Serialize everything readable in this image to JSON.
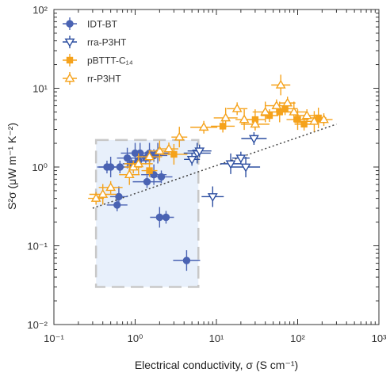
{
  "chart_data": {
    "type": "scatter",
    "title": "",
    "xlabel": "Electrical conductivity, σ (S cm⁻¹)",
    "ylabel": "S²σ (μW m⁻¹ K⁻²)",
    "xscale": "log",
    "yscale": "log",
    "xlim": [
      0.1,
      1000
    ],
    "ylim": [
      0.01,
      100
    ],
    "x_tick_labels": [
      "10⁻¹",
      "10⁰",
      "10¹",
      "10²",
      "10³"
    ],
    "x_tick_values": [
      0.1,
      1,
      10,
      100,
      1000
    ],
    "y_tick_labels": [
      "10⁻²",
      "10⁻¹",
      "10⁰",
      "10¹",
      "10²"
    ],
    "y_tick_values": [
      0.01,
      0.1,
      1,
      10,
      100
    ],
    "grid": false,
    "legend_position": "top-left",
    "highlight_box": {
      "x": [
        0.33,
        6.0
      ],
      "y": [
        0.03,
        2.2
      ],
      "fill": "#e8f0fb",
      "stroke": "#c8c8c8"
    },
    "trend_line": {
      "x": [
        0.3,
        300
      ],
      "y": [
        0.3,
        3.5
      ],
      "style": "dotted",
      "color": "#444444"
    },
    "series": [
      {
        "name": "IDT-BT",
        "marker": "filled-circle",
        "color": "#4a63b3",
        "points": [
          {
            "x": 0.45,
            "y": 1.0
          },
          {
            "x": 0.5,
            "y": 1.0
          },
          {
            "x": 0.65,
            "y": 1.0
          },
          {
            "x": 0.8,
            "y": 1.3
          },
          {
            "x": 0.9,
            "y": 1.1
          },
          {
            "x": 1.0,
            "y": 1.5
          },
          {
            "x": 1.1,
            "y": 1.2
          },
          {
            "x": 1.15,
            "y": 1.5
          },
          {
            "x": 1.35,
            "y": 1.3
          },
          {
            "x": 1.5,
            "y": 1.5
          },
          {
            "x": 1.7,
            "y": 1.4
          },
          {
            "x": 1.9,
            "y": 1.5
          },
          {
            "x": 0.6,
            "y": 0.33
          },
          {
            "x": 0.63,
            "y": 0.42
          },
          {
            "x": 1.4,
            "y": 0.65
          },
          {
            "x": 1.7,
            "y": 0.8
          },
          {
            "x": 2.1,
            "y": 0.75
          },
          {
            "x": 2.0,
            "y": 0.23
          },
          {
            "x": 2.4,
            "y": 0.23
          },
          {
            "x": 4.3,
            "y": 0.065
          }
        ]
      },
      {
        "name": "rra-P3HT",
        "marker": "open-triangle-down",
        "color": "#2c4ea0",
        "points": [
          {
            "x": 5.0,
            "y": 1.25
          },
          {
            "x": 5.8,
            "y": 1.5
          },
          {
            "x": 6.2,
            "y": 1.6
          },
          {
            "x": 15.0,
            "y": 1.1
          },
          {
            "x": 20.0,
            "y": 1.3
          },
          {
            "x": 23.0,
            "y": 1.0
          },
          {
            "x": 29.0,
            "y": 2.3
          },
          {
            "x": 9.0,
            "y": 0.42
          }
        ]
      },
      {
        "name": "pBTTT-C₁₄",
        "marker": "filled-square",
        "color": "#f5a21b",
        "points": [
          {
            "x": 1.5,
            "y": 0.9
          },
          {
            "x": 3.0,
            "y": 1.45
          },
          {
            "x": 12.0,
            "y": 3.3
          },
          {
            "x": 30.0,
            "y": 4.0
          },
          {
            "x": 45.0,
            "y": 4.5
          },
          {
            "x": 60.0,
            "y": 5.0
          },
          {
            "x": 70.0,
            "y": 5.5
          },
          {
            "x": 100.0,
            "y": 4.0
          },
          {
            "x": 120.0,
            "y": 3.5
          },
          {
            "x": 180.0,
            "y": 4.2
          }
        ]
      },
      {
        "name": "rr-P3HT",
        "marker": "open-triangle-up",
        "color": "#f5a21b",
        "points": [
          {
            "x": 0.33,
            "y": 0.4
          },
          {
            "x": 0.4,
            "y": 0.45
          },
          {
            "x": 0.5,
            "y": 0.55
          },
          {
            "x": 0.85,
            "y": 0.8
          },
          {
            "x": 0.95,
            "y": 1.0
          },
          {
            "x": 1.1,
            "y": 1.1
          },
          {
            "x": 1.5,
            "y": 1.35
          },
          {
            "x": 2.0,
            "y": 1.6
          },
          {
            "x": 2.6,
            "y": 1.7
          },
          {
            "x": 3.5,
            "y": 2.4
          },
          {
            "x": 7.0,
            "y": 3.2
          },
          {
            "x": 13.0,
            "y": 4.2
          },
          {
            "x": 18.0,
            "y": 5.5
          },
          {
            "x": 22.0,
            "y": 4.0
          },
          {
            "x": 30.0,
            "y": 3.5
          },
          {
            "x": 40.0,
            "y": 5.0
          },
          {
            "x": 55.0,
            "y": 6.0
          },
          {
            "x": 62.0,
            "y": 11.0
          },
          {
            "x": 75.0,
            "y": 6.5
          },
          {
            "x": 90.0,
            "y": 5.0
          },
          {
            "x": 130.0,
            "y": 4.5
          },
          {
            "x": 160.0,
            "y": 3.8
          },
          {
            "x": 210.0,
            "y": 4.0
          }
        ]
      }
    ]
  }
}
